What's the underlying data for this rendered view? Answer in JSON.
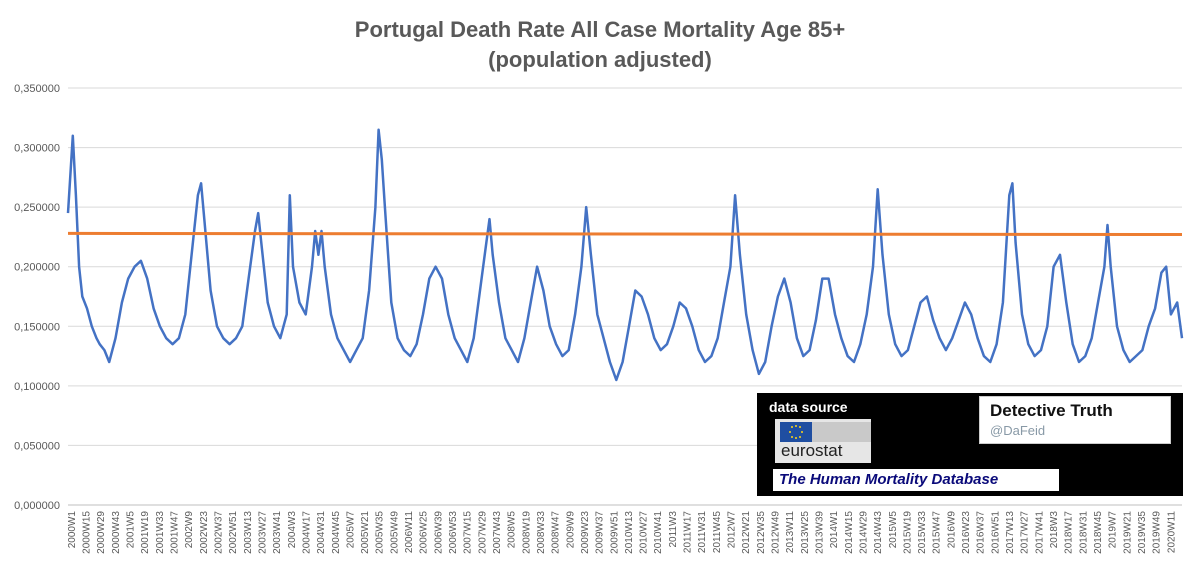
{
  "chart_data": {
    "type": "line",
    "title_line1": "Portugal Death Rate All Case Mortality Age 85+",
    "title_line2": "(population adjusted)",
    "xlabel": "",
    "ylabel": "",
    "ylim": [
      0,
      0.35
    ],
    "yticks": [
      "0,000000",
      "0,050000",
      "0,100000",
      "0,150000",
      "0,200000",
      "0,250000",
      "0,300000",
      "0,350000"
    ],
    "xtick_labels": [
      "2000W1",
      "2000W15",
      "2000W29",
      "2000W43",
      "2001W5",
      "2001W19",
      "2001W33",
      "2001W47",
      "2002W9",
      "2002W23",
      "2002W37",
      "2002W51",
      "2003W13",
      "2003W27",
      "2003W41",
      "2004W3",
      "2004W17",
      "2004W31",
      "2004W45",
      "2005W7",
      "2005W21",
      "2005W35",
      "2005W49",
      "2006W11",
      "2006W25",
      "2006W39",
      "2006W53",
      "2007W15",
      "2007W29",
      "2007W43",
      "2008W5",
      "2008W19",
      "2008W33",
      "2008W47",
      "2009W9",
      "2009W23",
      "2009W37",
      "2009W51",
      "2010W13",
      "2010W27",
      "2010W41",
      "2011W3",
      "2011W17",
      "2011W31",
      "2011W45",
      "2012W7",
      "2012W21",
      "2012W35",
      "2012W49",
      "2013W11",
      "2013W25",
      "2013W39",
      "2014W1",
      "2014W15",
      "2014W29",
      "2014W43",
      "2015W5",
      "2015W19",
      "2015W33",
      "2015W47",
      "2016W9",
      "2016W23",
      "2016W37",
      "2016W51",
      "2017W13",
      "2017W27",
      "2017W41",
      "2018W3",
      "2018W17",
      "2018W31",
      "2018W45",
      "2019W7",
      "2019W21",
      "2019W35",
      "2019W49",
      "2020W11"
    ],
    "grid": true,
    "series": [
      {
        "name": "",
        "color": "#4472c4",
        "description_points": [
          [
            0,
            0.245
          ],
          [
            3,
            0.31
          ],
          [
            5,
            0.26
          ],
          [
            7,
            0.2
          ],
          [
            9,
            0.175
          ],
          [
            12,
            0.165
          ],
          [
            15,
            0.15
          ],
          [
            18,
            0.14
          ],
          [
            20,
            0.135
          ],
          [
            23,
            0.13
          ],
          [
            26,
            0.12
          ],
          [
            30,
            0.14
          ],
          [
            34,
            0.17
          ],
          [
            38,
            0.19
          ],
          [
            42,
            0.2
          ],
          [
            46,
            0.205
          ],
          [
            50,
            0.19
          ],
          [
            54,
            0.165
          ],
          [
            58,
            0.15
          ],
          [
            62,
            0.14
          ],
          [
            66,
            0.135
          ],
          [
            70,
            0.14
          ],
          [
            74,
            0.16
          ],
          [
            78,
            0.21
          ],
          [
            82,
            0.26
          ],
          [
            84,
            0.27
          ],
          [
            86,
            0.24
          ],
          [
            90,
            0.18
          ],
          [
            94,
            0.15
          ],
          [
            98,
            0.14
          ],
          [
            102,
            0.135
          ],
          [
            106,
            0.14
          ],
          [
            110,
            0.15
          ],
          [
            114,
            0.19
          ],
          [
            118,
            0.23
          ],
          [
            120,
            0.245
          ],
          [
            122,
            0.22
          ],
          [
            126,
            0.17
          ],
          [
            130,
            0.15
          ],
          [
            134,
            0.14
          ],
          [
            138,
            0.16
          ],
          [
            140,
            0.26
          ],
          [
            142,
            0.2
          ],
          [
            146,
            0.17
          ],
          [
            150,
            0.16
          ],
          [
            154,
            0.2
          ],
          [
            156,
            0.23
          ],
          [
            158,
            0.21
          ],
          [
            160,
            0.23
          ],
          [
            162,
            0.2
          ],
          [
            166,
            0.16
          ],
          [
            170,
            0.14
          ],
          [
            174,
            0.13
          ],
          [
            178,
            0.12
          ],
          [
            182,
            0.13
          ],
          [
            186,
            0.14
          ],
          [
            190,
            0.18
          ],
          [
            194,
            0.25
          ],
          [
            196,
            0.315
          ],
          [
            198,
            0.29
          ],
          [
            200,
            0.25
          ],
          [
            204,
            0.17
          ],
          [
            208,
            0.14
          ],
          [
            212,
            0.13
          ],
          [
            216,
            0.125
          ],
          [
            220,
            0.135
          ],
          [
            224,
            0.16
          ],
          [
            228,
            0.19
          ],
          [
            232,
            0.2
          ],
          [
            236,
            0.19
          ],
          [
            240,
            0.16
          ],
          [
            244,
            0.14
          ],
          [
            248,
            0.13
          ],
          [
            252,
            0.12
          ],
          [
            256,
            0.14
          ],
          [
            260,
            0.18
          ],
          [
            264,
            0.22
          ],
          [
            266,
            0.24
          ],
          [
            268,
            0.21
          ],
          [
            272,
            0.17
          ],
          [
            276,
            0.14
          ],
          [
            280,
            0.13
          ],
          [
            284,
            0.12
          ],
          [
            288,
            0.14
          ],
          [
            292,
            0.17
          ],
          [
            296,
            0.2
          ],
          [
            300,
            0.18
          ],
          [
            304,
            0.15
          ],
          [
            308,
            0.135
          ],
          [
            312,
            0.125
          ],
          [
            316,
            0.13
          ],
          [
            320,
            0.16
          ],
          [
            324,
            0.2
          ],
          [
            327,
            0.25
          ],
          [
            330,
            0.21
          ],
          [
            334,
            0.16
          ],
          [
            338,
            0.14
          ],
          [
            342,
            0.12
          ],
          [
            346,
            0.105
          ],
          [
            350,
            0.12
          ],
          [
            354,
            0.15
          ],
          [
            358,
            0.18
          ],
          [
            362,
            0.175
          ],
          [
            366,
            0.16
          ],
          [
            370,
            0.14
          ],
          [
            374,
            0.13
          ],
          [
            378,
            0.135
          ],
          [
            382,
            0.15
          ],
          [
            386,
            0.17
          ],
          [
            390,
            0.165
          ],
          [
            394,
            0.15
          ],
          [
            398,
            0.13
          ],
          [
            402,
            0.12
          ],
          [
            406,
            0.125
          ],
          [
            410,
            0.14
          ],
          [
            414,
            0.17
          ],
          [
            418,
            0.2
          ],
          [
            421,
            0.26
          ],
          [
            424,
            0.21
          ],
          [
            428,
            0.16
          ],
          [
            432,
            0.13
          ],
          [
            436,
            0.11
          ],
          [
            440,
            0.12
          ],
          [
            444,
            0.15
          ],
          [
            448,
            0.175
          ],
          [
            452,
            0.19
          ],
          [
            456,
            0.17
          ],
          [
            460,
            0.14
          ],
          [
            464,
            0.125
          ],
          [
            468,
            0.13
          ],
          [
            472,
            0.155
          ],
          [
            476,
            0.19
          ],
          [
            480,
            0.19
          ],
          [
            484,
            0.16
          ],
          [
            488,
            0.14
          ],
          [
            492,
            0.125
          ],
          [
            496,
            0.12
          ],
          [
            500,
            0.135
          ],
          [
            504,
            0.16
          ],
          [
            508,
            0.2
          ],
          [
            511,
            0.265
          ],
          [
            514,
            0.21
          ],
          [
            518,
            0.16
          ],
          [
            522,
            0.135
          ],
          [
            526,
            0.125
          ],
          [
            530,
            0.13
          ],
          [
            534,
            0.15
          ],
          [
            538,
            0.17
          ],
          [
            542,
            0.175
          ],
          [
            546,
            0.155
          ],
          [
            550,
            0.14
          ],
          [
            554,
            0.13
          ],
          [
            558,
            0.14
          ],
          [
            562,
            0.155
          ],
          [
            566,
            0.17
          ],
          [
            570,
            0.16
          ],
          [
            574,
            0.14
          ],
          [
            578,
            0.125
          ],
          [
            582,
            0.12
          ],
          [
            586,
            0.135
          ],
          [
            590,
            0.17
          ],
          [
            594,
            0.26
          ],
          [
            596,
            0.27
          ],
          [
            598,
            0.22
          ],
          [
            602,
            0.16
          ],
          [
            606,
            0.135
          ],
          [
            610,
            0.125
          ],
          [
            614,
            0.13
          ],
          [
            618,
            0.15
          ],
          [
            622,
            0.2
          ],
          [
            626,
            0.21
          ],
          [
            630,
            0.17
          ],
          [
            634,
            0.135
          ],
          [
            638,
            0.12
          ],
          [
            642,
            0.125
          ],
          [
            646,
            0.14
          ],
          [
            650,
            0.17
          ],
          [
            654,
            0.2
          ],
          [
            656,
            0.235
          ],
          [
            658,
            0.2
          ],
          [
            662,
            0.15
          ],
          [
            666,
            0.13
          ],
          [
            670,
            0.12
          ],
          [
            674,
            0.125
          ],
          [
            678,
            0.13
          ],
          [
            682,
            0.15
          ],
          [
            686,
            0.165
          ],
          [
            690,
            0.195
          ],
          [
            693,
            0.2
          ],
          [
            696,
            0.16
          ],
          [
            700,
            0.17
          ],
          [
            703,
            0.14
          ]
        ]
      },
      {
        "name": "",
        "color": "#ed7d31",
        "description_points": [
          [
            0,
            0.228
          ],
          [
            703,
            0.227
          ]
        ]
      }
    ]
  },
  "source_box": {
    "label": "data source",
    "eurostat": "eurostat",
    "hmd": "The Human Mortality Database",
    "brand_name": "Detective Truth",
    "handle": "@DaFeid"
  }
}
